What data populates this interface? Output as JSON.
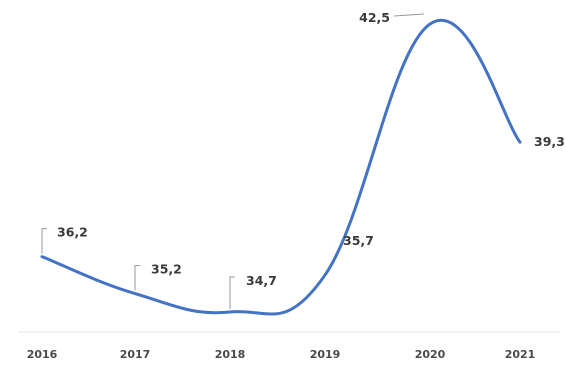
{
  "chart_data": {
    "type": "line",
    "categories": [
      "2016",
      "2017",
      "2018",
      "2019",
      "2020",
      "2021"
    ],
    "series": [
      {
        "values": [
          36.2,
          35.2,
          34.7,
          35.7,
          42.5,
          39.3
        ],
        "labels": [
          "36,2",
          "35,2",
          "34,7",
          "35,7",
          "42,5",
          "39,3"
        ]
      }
    ],
    "colors": {
      "line": "#4472c4"
    },
    "grid": false,
    "legend": "none",
    "title": "",
    "xlabel": "",
    "ylabel": ""
  }
}
